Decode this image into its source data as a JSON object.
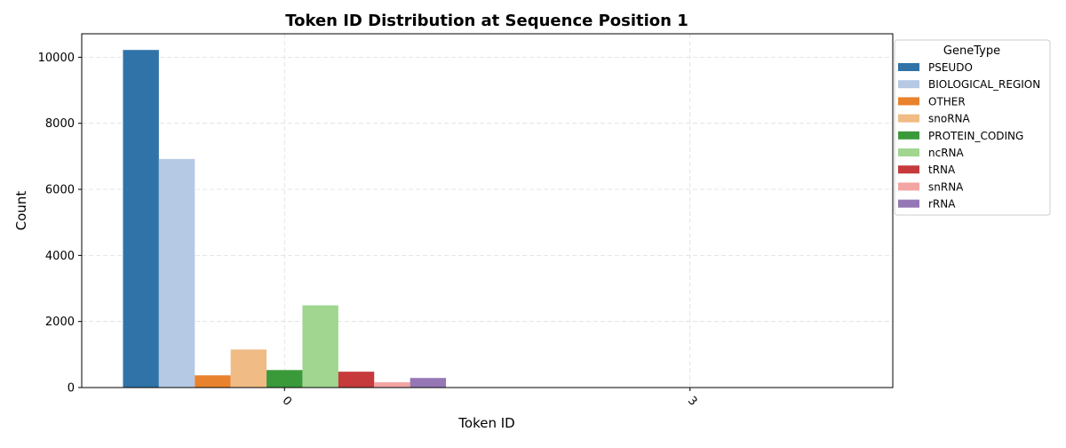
{
  "chart_data": {
    "type": "bar",
    "title": "Token ID Distribution at Sequence Position 1",
    "xlabel": "Token ID",
    "ylabel": "Count",
    "categories": [
      "0",
      "3"
    ],
    "ylim": [
      0,
      10710
    ],
    "yticks": [
      0,
      2000,
      4000,
      6000,
      8000,
      10000
    ],
    "grid": true,
    "legend": {
      "title": "GeneType",
      "placement": "upper-right-outside"
    },
    "series": [
      {
        "name": "PSEUDO",
        "color": "#2f73a8",
        "values": [
          10220,
          0
        ]
      },
      {
        "name": "BIOLOGICAL_REGION",
        "color": "#b5c8e4",
        "values": [
          6920,
          0
        ]
      },
      {
        "name": "OTHER",
        "color": "#e9822c",
        "values": [
          370,
          0
        ]
      },
      {
        "name": "snoRNA",
        "color": "#f0bb84",
        "values": [
          1150,
          0
        ]
      },
      {
        "name": "PROTEIN_CODING",
        "color": "#3a9a3a",
        "values": [
          530,
          0
        ]
      },
      {
        "name": "ncRNA",
        "color": "#a0d68f",
        "values": [
          2490,
          0
        ]
      },
      {
        "name": "tRNA",
        "color": "#c63a3b",
        "values": [
          480,
          0
        ]
      },
      {
        "name": "snRNA",
        "color": "#f3a5a3",
        "values": [
          160,
          0
        ]
      },
      {
        "name": "rRNA",
        "color": "#9677b6",
        "values": [
          290,
          0
        ]
      }
    ]
  }
}
